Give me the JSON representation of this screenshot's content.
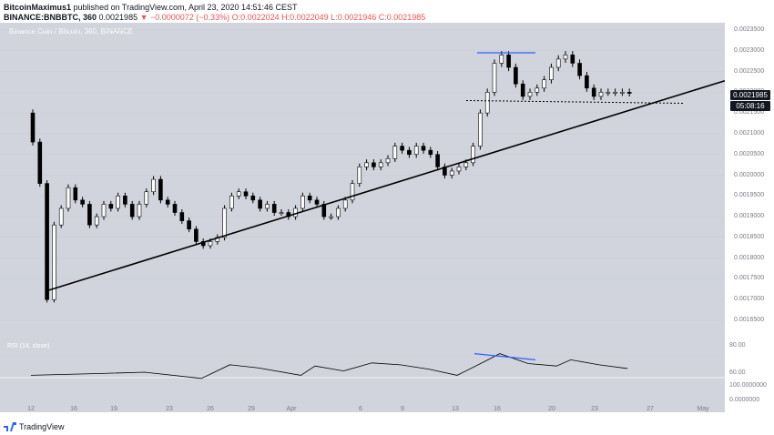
{
  "header": {
    "author": "BitcoinMaximus1",
    "published": "published on TradingView.com, April 23, 2020 14:51:46 CEST",
    "symbol": "BINANCE:BNBBTC, 360",
    "price": "0.0021985",
    "change": "▼ −0.0000072 (−0.33%)",
    "ohlc": "O:0.0022024 H:0.0022049 L:0.0021946 C:0.0021985"
  },
  "chart_title": "Binance Coin / Bitcoin, 360, BINANCE",
  "rsi_title": "RSI (14, close)",
  "price_badge": "0.0021985",
  "time_badge": "05:08:16",
  "footer": {
    "brand": "TradingView"
  },
  "colors": {
    "background": "#d1d4dc",
    "trendline": "#000000",
    "divergence": "#2962ff",
    "badge": "#131722"
  },
  "chart_data": {
    "type": "candlestick",
    "y_ticks": [
      "0.0023500",
      "0.0023000",
      "0.0022500",
      "0.0022000",
      "0.0021500",
      "0.0021000",
      "0.0020500",
      "0.0020000",
      "0.0019500",
      "0.0019000",
      "0.0018500",
      "0.0018000",
      "0.0017500",
      "0.0017000",
      "0.0016500"
    ],
    "rsi_ticks": [
      "80.00",
      "60.00",
      "100.0000000",
      "0.0000000"
    ],
    "x_ticks": [
      "12",
      "16",
      "19",
      "23",
      "26",
      "29",
      "Apr",
      "6",
      "9",
      "13",
      "16",
      "20",
      "23",
      "27",
      "May"
    ],
    "price_series": [
      [
        "Mar 12",
        0.00215
      ],
      [
        "Mar 12",
        0.00208
      ],
      [
        "Mar 13",
        0.00198
      ],
      [
        "Mar 13",
        0.0017
      ],
      [
        "Mar 14",
        0.00188
      ],
      [
        "Mar 14",
        0.00192
      ],
      [
        "Mar 15",
        0.00197
      ],
      [
        "Mar 15",
        0.00194
      ],
      [
        "Mar 16",
        0.00193
      ],
      [
        "Mar 16",
        0.00188
      ],
      [
        "Mar 17",
        0.0019
      ],
      [
        "Mar 17",
        0.00193
      ],
      [
        "Mar 18",
        0.00192
      ],
      [
        "Mar 18",
        0.00195
      ],
      [
        "Mar 19",
        0.00193
      ],
      [
        "Mar 19",
        0.0019
      ],
      [
        "Mar 20",
        0.00193
      ],
      [
        "Mar 20",
        0.00196
      ],
      [
        "Mar 21",
        0.00199
      ],
      [
        "Mar 21",
        0.00194
      ],
      [
        "Mar 22",
        0.00193
      ],
      [
        "Mar 22",
        0.00191
      ],
      [
        "Mar 23",
        0.00189
      ],
      [
        "Mar 23",
        0.00187
      ],
      [
        "Mar 24",
        0.00184
      ],
      [
        "Mar 24",
        0.00183
      ],
      [
        "Mar 25",
        0.00184
      ],
      [
        "Mar 25",
        0.00185
      ],
      [
        "Mar 26",
        0.00192
      ],
      [
        "Mar 26",
        0.00195
      ],
      [
        "Mar 27",
        0.00196
      ],
      [
        "Mar 27",
        0.00195
      ],
      [
        "Mar 28",
        0.00194
      ],
      [
        "Mar 28",
        0.00192
      ],
      [
        "Mar 29",
        0.00193
      ],
      [
        "Mar 29",
        0.00191
      ],
      [
        "Mar 30",
        0.00191
      ],
      [
        "Mar 30",
        0.0019
      ],
      [
        "Mar 31",
        0.00192
      ],
      [
        "Mar 31",
        0.00195
      ],
      [
        "Apr 1",
        0.00194
      ],
      [
        "Apr 1",
        0.00193
      ],
      [
        "Apr 2",
        0.0019
      ],
      [
        "Apr 2",
        0.0019
      ],
      [
        "Apr 3",
        0.00192
      ],
      [
        "Apr 3",
        0.00194
      ],
      [
        "Apr 4",
        0.00198
      ],
      [
        "Apr 4",
        0.00202
      ],
      [
        "Apr 5",
        0.00203
      ],
      [
        "Apr 5",
        0.00202
      ],
      [
        "Apr 6",
        0.00203
      ],
      [
        "Apr 6",
        0.00204
      ],
      [
        "Apr 7",
        0.00207
      ],
      [
        "Apr 7",
        0.00206
      ],
      [
        "Apr 8",
        0.00205
      ],
      [
        "Apr 8",
        0.00207
      ],
      [
        "Apr 9",
        0.00206
      ],
      [
        "Apr 9",
        0.00205
      ],
      [
        "Apr 10",
        0.00202
      ],
      [
        "Apr 10",
        0.002
      ],
      [
        "Apr 11",
        0.00201
      ],
      [
        "Apr 11",
        0.00202
      ],
      [
        "Apr 12",
        0.00203
      ],
      [
        "Apr 12",
        0.00207
      ],
      [
        "Apr 13",
        0.00215
      ],
      [
        "Apr 13",
        0.0022
      ],
      [
        "Apr 14",
        0.00227
      ],
      [
        "Apr 14",
        0.00229
      ],
      [
        "Apr 15",
        0.00226
      ],
      [
        "Apr 15",
        0.00222
      ],
      [
        "Apr 16",
        0.00219
      ],
      [
        "Apr 16",
        0.0022
      ],
      [
        "Apr 17",
        0.00221
      ],
      [
        "Apr 17",
        0.00223
      ],
      [
        "Apr 18",
        0.00226
      ],
      [
        "Apr 18",
        0.00228
      ],
      [
        "Apr 19",
        0.00229
      ],
      [
        "Apr 19",
        0.00227
      ],
      [
        "Apr 20",
        0.00224
      ],
      [
        "Apr 20",
        0.00221
      ],
      [
        "Apr 21",
        0.00219
      ],
      [
        "Apr 21",
        0.0022
      ],
      [
        "Apr 22",
        0.0022
      ],
      [
        "Apr 22",
        0.0022
      ],
      [
        "Apr 23",
        0.0022
      ],
      [
        "Apr 23",
        0.0021985
      ]
    ],
    "trendline": [
      [
        "Mar 13",
        0.00172
      ],
      [
        "May 1",
        0.00224
      ]
    ],
    "support_line": {
      "type": "dotted",
      "value": 0.00218
    },
    "price_divergence": [
      [
        "Apr 14",
        0.0023
      ],
      [
        "Apr 19",
        0.0023
      ]
    ],
    "rsi_divergence": [
      [
        "Apr 14",
        80
      ],
      [
        "Apr 19",
        70
      ]
    ],
    "rsi_series": [
      [
        "Mar 12",
        45
      ],
      [
        "Mar 17",
        48
      ],
      [
        "Mar 20",
        50
      ],
      [
        "Mar 24",
        40
      ],
      [
        "Mar 26",
        62
      ],
      [
        "Mar 28",
        57
      ],
      [
        "Mar 31",
        45
      ],
      [
        "Apr 1",
        60
      ],
      [
        "Apr 3",
        52
      ],
      [
        "Apr 5",
        65
      ],
      [
        "Apr 7",
        62
      ],
      [
        "Apr 9",
        55
      ],
      [
        "Apr 11",
        45
      ],
      [
        "Apr 13",
        68
      ],
      [
        "Apr 14",
        80
      ],
      [
        "Apr 16",
        64
      ],
      [
        "Apr 18",
        60
      ],
      [
        "Apr 19",
        70
      ],
      [
        "Apr 21",
        62
      ],
      [
        "Apr 23",
        56
      ]
    ]
  }
}
